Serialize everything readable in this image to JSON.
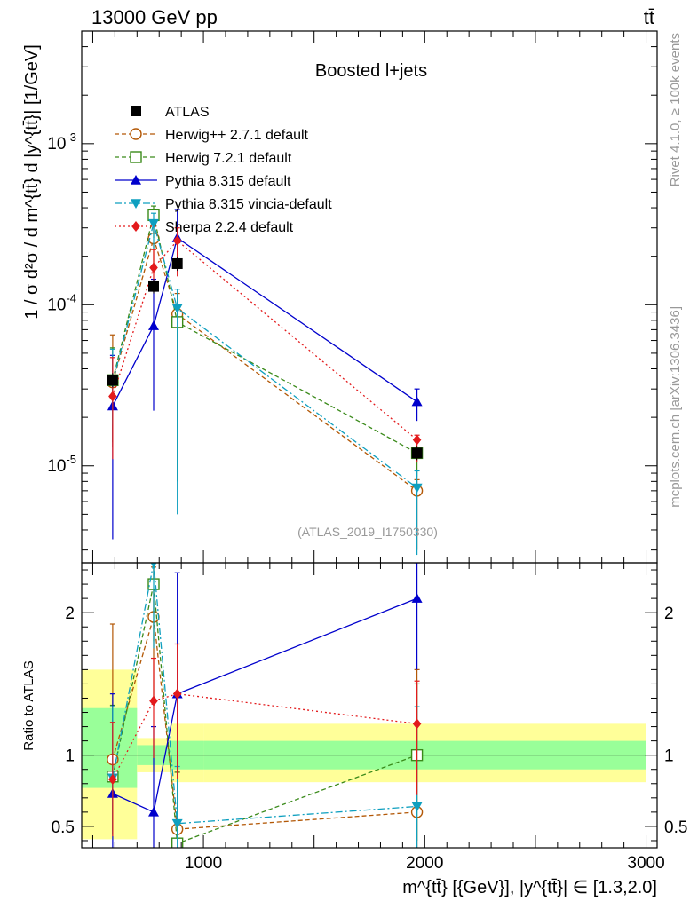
{
  "header": {
    "left": "13000 GeV pp",
    "right": "tt̄"
  },
  "side_labels": {
    "rivet": "Rivet 4.1.0, ≥ 100k events",
    "mcplots": "mcplots.cern.ch [arXiv:1306.3436]"
  },
  "chart_data": {
    "type": "line",
    "title": "Boosted l+jets",
    "analysis_tag": "(ATLAS_2019_I1750330)",
    "xlabel": "m^{tt̄} [{GeV}], |y^{tt̄}| ∈ [1.3,2.0]",
    "ylabel": "1 / σ d²σ / d m^{tt̄} d |y^{tt̄}| [1/GeV]",
    "ratio_ylabel": "Ratio to ATLAS",
    "xlim": [
      450,
      3050
    ],
    "ylim": [
      2.5e-06,
      0.005
    ],
    "ylog": true,
    "ratio_ylim": [
      0.35,
      2.35
    ],
    "x_ticks": [
      1000,
      2000,
      3000
    ],
    "x_tick_labels": [
      "1000",
      "2000",
      "3000"
    ],
    "y_ticks": [
      1e-05,
      0.0001,
      0.001
    ],
    "y_tick_labels": [
      "10^-5",
      "10^-4",
      "10^-3"
    ],
    "ratio_ticks": [
      0.5,
      1,
      2
    ],
    "ratio_tick_labels": [
      "0.5",
      "1",
      "2"
    ],
    "bins": [
      [
        450,
        700
      ],
      [
        700,
        850
      ],
      [
        850,
        1000
      ],
      [
        1000,
        3000
      ]
    ],
    "x": [
      590,
      775,
      882,
      1965
    ],
    "data_x": [
      590,
      775,
      882,
      1965
    ],
    "data": {
      "name": "ATLAS",
      "values": [
        3.4e-05,
        0.00013,
        0.00018,
        1.2e-05
      ],
      "band_stat": [
        [
          0.77,
          1.33
        ],
        [
          0.93,
          1.07
        ],
        [
          0.9,
          1.1
        ],
        [
          0.9,
          1.1
        ]
      ],
      "band_total": [
        [
          0.41,
          1.6
        ],
        [
          0.88,
          1.12
        ],
        [
          0.81,
          1.22
        ],
        [
          0.81,
          1.22
        ]
      ]
    },
    "series": [
      {
        "name": "Herwig++ 2.7.1 default",
        "color": "#b35806",
        "marker": "circle-open",
        "dash": "5,3",
        "x": [
          590,
          775,
          882,
          1965
        ],
        "values": [
          3.3e-05,
          0.000258,
          8.75e-05,
          7e-06
        ],
        "err_lo": [
          2e-05,
          0.0001,
          5e-05,
          4e-06
        ],
        "err_hi": [
          3.2e-05,
          7e-05,
          3e-05,
          1.2e-06
        ],
        "ratio": [
          0.97,
          1.97,
          0.48,
          0.6
        ],
        "ratio_err_lo": [
          0.5,
          0.6,
          0.2,
          0.3
        ],
        "ratio_err_hi": [
          0.95,
          0.35,
          0.4,
          1.0
        ]
      },
      {
        "name": "Herwig 7.2.1 default",
        "color": "#3a8a1a",
        "marker": "square-open",
        "dash": "5,3",
        "x": [
          590,
          775,
          882,
          1965
        ],
        "values": [
          3.4e-05,
          0.00036,
          7.8e-05,
          1.2e-05
        ],
        "err_lo": [
          2e-05,
          0.0001,
          7e-05,
          3.5e-06
        ],
        "err_hi": [
          2e-05,
          5e-05,
          2e-05,
          1e-06
        ],
        "ratio": [
          0.85,
          2.2,
          0.38,
          1.0
        ],
        "ratio_err_lo": [
          0.4,
          0.4,
          0.1,
          0.6
        ],
        "ratio_err_hi": [
          0.5,
          0.2,
          0.5,
          0.5
        ]
      },
      {
        "name": "Pythia 8.315 default",
        "color": "#0000cc",
        "marker": "triangle-up",
        "dash": "",
        "x": [
          590,
          775,
          882,
          1965
        ],
        "values": [
          2.35e-05,
          7.4e-05,
          0.00026,
          2.5e-05
        ],
        "err_lo": [
          2e-05,
          5.2e-05,
          0.0001,
          6e-06
        ],
        "err_hi": [
          2.5e-05,
          7e-05,
          0.00013,
          5e-06
        ],
        "ratio": [
          0.73,
          0.6,
          1.43,
          2.1
        ],
        "ratio_err_lo": [
          0.5,
          0.5,
          0.6,
          0.5
        ],
        "ratio_err_hi": [
          0.7,
          0.6,
          0.85,
          0.6
        ]
      },
      {
        "name": "Pythia 8.315 vincia-default",
        "color": "#0e9fbf",
        "marker": "triangle-down",
        "dash": "8,3,2,3",
        "x": [
          590,
          775,
          882,
          1965
        ],
        "values": [
          3.3e-05,
          0.00032,
          9.5e-05,
          7.3e-06
        ],
        "err_lo": [
          1.5e-05,
          0.0001,
          9e-05,
          4.5e-06
        ],
        "err_hi": [
          2e-05,
          5e-05,
          3e-05,
          2e-06
        ],
        "ratio": [
          0.84,
          2.35,
          0.52,
          0.64
        ],
        "ratio_err_lo": [
          0.4,
          0.6,
          0.2,
          0.3
        ],
        "ratio_err_hi": [
          0.5,
          0.0,
          0.4,
          0.7
        ]
      },
      {
        "name": "Sherpa 2.2.4 default",
        "color": "#e31a1c",
        "marker": "diamond",
        "dash": "2,3",
        "x": [
          590,
          775,
          882,
          1965
        ],
        "values": [
          2.7e-05,
          0.00017,
          0.00025,
          1.45e-05
        ],
        "err_lo": [
          1.6e-05,
          5e-05,
          0.0001,
          4e-06
        ],
        "err_hi": [
          2e-05,
          5e-05,
          5e-05,
          1e-06
        ],
        "ratio": [
          0.83,
          1.38,
          1.43,
          1.22
        ],
        "ratio_err_lo": [
          0.4,
          0.4,
          0.6,
          0.5
        ],
        "ratio_err_hi": [
          0.4,
          0.3,
          0.35,
          0.3
        ]
      }
    ]
  }
}
